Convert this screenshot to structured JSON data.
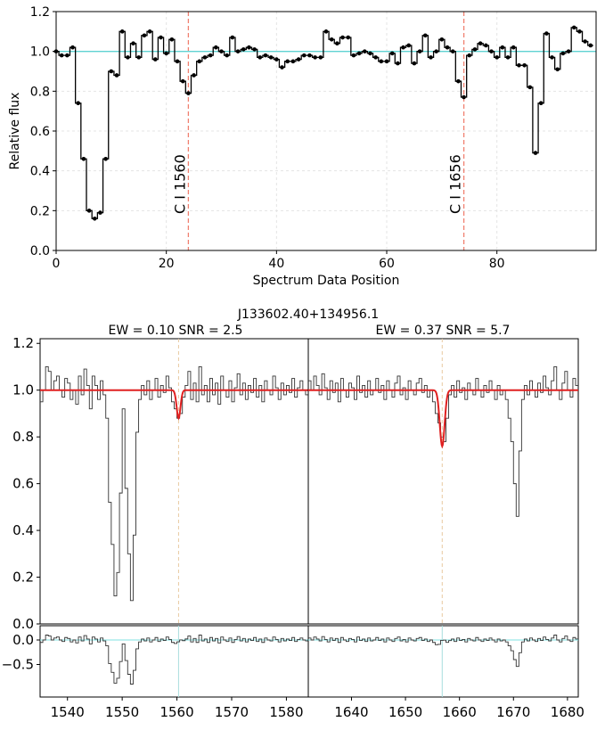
{
  "chart_data": [
    {
      "type": "line",
      "panel": "top",
      "xlabel": "Spectrum Data Position",
      "ylabel": "Relative flux",
      "xlim": [
        0,
        98
      ],
      "ylim": [
        0,
        1.2
      ],
      "xticks": [
        "0",
        "20",
        "40",
        "60",
        "80"
      ],
      "yticks": [
        "0.0",
        "0.2",
        "0.4",
        "0.6",
        "0.8",
        "1.0",
        "1.2"
      ],
      "reference_line": {
        "y": 1.0,
        "color": "#5fd3d3"
      },
      "grid": true,
      "series": [
        {
          "color": "#000000",
          "x": [
            0,
            1,
            2,
            3,
            4,
            5,
            6,
            7,
            8,
            9,
            10,
            11,
            12,
            13,
            14,
            15,
            16,
            17,
            18,
            19,
            20,
            21,
            22,
            23,
            24,
            25,
            26,
            27,
            28,
            29,
            30,
            31,
            32,
            33,
            34,
            35,
            36,
            37,
            38,
            39,
            40,
            41,
            42,
            43,
            44,
            45,
            46,
            47,
            48,
            49,
            50,
            51,
            52,
            53,
            54,
            55,
            56,
            57,
            58,
            59,
            60,
            61,
            62,
            63,
            64,
            65,
            66,
            67,
            68,
            69,
            70,
            71,
            72,
            73,
            74,
            75,
            76,
            77,
            78,
            79,
            80,
            81,
            82,
            83,
            84,
            85,
            86,
            87,
            88,
            89,
            90,
            91,
            92,
            93,
            94,
            95,
            96,
            97
          ],
          "y": [
            1.0,
            0.98,
            0.98,
            1.02,
            0.74,
            0.46,
            0.2,
            0.16,
            0.19,
            0.46,
            0.9,
            0.88,
            1.1,
            0.97,
            1.04,
            0.97,
            1.08,
            1.1,
            0.96,
            1.07,
            0.99,
            1.06,
            0.95,
            0.85,
            0.79,
            0.88,
            0.95,
            0.97,
            0.98,
            1.02,
            1.0,
            0.98,
            1.07,
            1.0,
            1.01,
            1.02,
            1.01,
            0.97,
            0.98,
            0.97,
            0.96,
            0.92,
            0.95,
            0.95,
            0.96,
            0.98,
            0.98,
            0.97,
            0.97,
            1.1,
            1.06,
            1.04,
            1.07,
            1.07,
            0.98,
            0.99,
            1.0,
            0.99,
            0.97,
            0.95,
            0.95,
            0.99,
            0.94,
            1.02,
            1.03,
            0.94,
            1.0,
            1.08,
            0.97,
            1.0,
            1.06,
            1.02,
            1.0,
            0.85,
            0.77,
            0.98,
            1.01,
            1.04,
            1.03,
            1.0,
            0.97,
            1.02,
            0.97,
            1.02,
            0.93,
            0.93,
            0.82,
            0.49,
            0.74,
            1.09,
            0.97,
            0.91,
            0.99,
            1.0,
            1.12,
            1.1,
            1.05,
            1.03
          ]
        }
      ],
      "annotations": [
        {
          "x": 24,
          "label": "C I 1560",
          "color": "#f08070"
        },
        {
          "x": 74,
          "label": "C I 1656",
          "color": "#f08070"
        }
      ]
    },
    {
      "type": "line",
      "panel": "bottom-left",
      "title": "J133602.40+134956.1",
      "subtitle": "EW = 0.10  SNR = 2.5",
      "xlim": [
        1535,
        1584
      ],
      "ylim": [
        0,
        1.22
      ],
      "yticks": [
        "0.0",
        "0.2",
        "0.4",
        "0.6",
        "0.8",
        "1.0",
        "1.2"
      ],
      "xticks": [
        "1540",
        "1550",
        "1560",
        "1570",
        "1580"
      ],
      "resid_yticks": [
        "0.0",
        "−0.5"
      ],
      "line_position": 1560.3,
      "model": {
        "color": "#e02020",
        "center": 1560.3,
        "depth": 0.12,
        "sigma": 0.35,
        "continuum": 1.0
      },
      "flux_points": [
        [
          1535,
          0.95
        ],
        [
          1535.5,
          1.0
        ],
        [
          1536,
          1.1
        ],
        [
          1536.5,
          1.08
        ],
        [
          1537,
          1.0
        ],
        [
          1537.5,
          1.04
        ],
        [
          1538,
          1.06
        ],
        [
          1538.5,
          1.0
        ],
        [
          1539,
          0.97
        ],
        [
          1539.5,
          1.05
        ],
        [
          1540,
          1.03
        ],
        [
          1540.5,
          0.96
        ],
        [
          1541,
          1.0
        ],
        [
          1541.5,
          0.94
        ],
        [
          1542,
          1.06
        ],
        [
          1542.5,
          0.98
        ],
        [
          1543,
          1.09
        ],
        [
          1543.5,
          1.02
        ],
        [
          1544,
          0.92
        ],
        [
          1544.5,
          1.06
        ],
        [
          1545,
          1.02
        ],
        [
          1545.5,
          0.96
        ],
        [
          1546,
          1.04
        ],
        [
          1546.5,
          0.98
        ],
        [
          1547,
          0.88
        ],
        [
          1547.5,
          0.52
        ],
        [
          1548,
          0.34
        ],
        [
          1548.5,
          0.12
        ],
        [
          1549,
          0.22
        ],
        [
          1549.5,
          0.56
        ],
        [
          1550,
          0.92
        ],
        [
          1550.5,
          0.58
        ],
        [
          1551,
          0.3
        ],
        [
          1551.5,
          0.1
        ],
        [
          1552,
          0.38
        ],
        [
          1552.5,
          0.82
        ],
        [
          1553,
          0.96
        ],
        [
          1553.5,
          1.02
        ],
        [
          1554,
          0.98
        ],
        [
          1554.5,
          1.04
        ],
        [
          1555,
          0.96
        ],
        [
          1555.5,
          1.0
        ],
        [
          1556,
          1.05
        ],
        [
          1556.5,
          0.97
        ],
        [
          1557,
          1.02
        ],
        [
          1557.5,
          0.99
        ],
        [
          1558,
          1.06
        ],
        [
          1558.5,
          1.01
        ],
        [
          1559,
          0.95
        ],
        [
          1559.5,
          0.92
        ],
        [
          1560,
          0.88
        ],
        [
          1560.5,
          0.9
        ],
        [
          1561,
          0.97
        ],
        [
          1561.5,
          1.02
        ],
        [
          1562,
          1.08
        ],
        [
          1562.5,
          0.96
        ],
        [
          1563,
          1.03
        ],
        [
          1563.5,
          0.95
        ],
        [
          1564,
          1.1
        ],
        [
          1564.5,
          0.98
        ],
        [
          1565,
          1.02
        ],
        [
          1565.5,
          0.95
        ],
        [
          1566,
          1.05
        ],
        [
          1566.5,
          0.98
        ],
        [
          1567,
          1.03
        ],
        [
          1567.5,
          0.94
        ],
        [
          1568,
          1.06
        ],
        [
          1568.5,
          1.0
        ],
        [
          1569,
          0.97
        ],
        [
          1569.5,
          1.04
        ],
        [
          1570,
          0.95
        ],
        [
          1570.5,
          1.01
        ],
        [
          1571,
          1.07
        ],
        [
          1571.5,
          0.98
        ],
        [
          1572,
          1.03
        ],
        [
          1572.5,
          0.96
        ],
        [
          1573,
          1.02
        ],
        [
          1573.5,
          0.99
        ],
        [
          1574,
          1.05
        ],
        [
          1574.5,
          0.97
        ],
        [
          1575,
          1.02
        ],
        [
          1575.5,
          0.95
        ],
        [
          1576,
          1.04
        ],
        [
          1576.5,
          1.0
        ],
        [
          1577,
          0.98
        ],
        [
          1577.5,
          1.06
        ],
        [
          1578,
          1.01
        ],
        [
          1578.5,
          0.96
        ],
        [
          1579,
          1.03
        ],
        [
          1579.5,
          0.98
        ],
        [
          1580,
          1.02
        ],
        [
          1580.5,
          0.99
        ],
        [
          1581,
          1.05
        ],
        [
          1581.5,
          0.97
        ],
        [
          1582,
          1.01
        ],
        [
          1582.5,
          1.04
        ],
        [
          1583,
          1.0
        ],
        [
          1583.5,
          0.98
        ]
      ]
    },
    {
      "type": "line",
      "panel": "bottom-right",
      "subtitle": "EW = 0.37  SNR = 5.7",
      "xlim": [
        1632,
        1682
      ],
      "ylim": [
        0,
        1.22
      ],
      "xticks": [
        "1640",
        "1650",
        "1660",
        "1670",
        "1680"
      ],
      "line_position": 1656.8,
      "model": {
        "color": "#e02020",
        "center": 1656.8,
        "depth": 0.24,
        "sigma": 0.45,
        "continuum": 1.0
      },
      "flux_points": [
        [
          1632,
          1.04
        ],
        [
          1632.5,
          1.0
        ],
        [
          1633,
          1.06
        ],
        [
          1633.5,
          1.02
        ],
        [
          1634,
          0.98
        ],
        [
          1634.5,
          1.07
        ],
        [
          1635,
          1.01
        ],
        [
          1635.5,
          0.96
        ],
        [
          1636,
          1.04
        ],
        [
          1636.5,
          0.99
        ],
        [
          1637,
          1.03
        ],
        [
          1637.5,
          0.95
        ],
        [
          1638,
          1.05
        ],
        [
          1638.5,
          1.0
        ],
        [
          1639,
          0.97
        ],
        [
          1639.5,
          1.03
        ],
        [
          1640,
          1.01
        ],
        [
          1640.5,
          0.96
        ],
        [
          1641,
          1.06
        ],
        [
          1641.5,
          0.99
        ],
        [
          1642,
          1.02
        ],
        [
          1642.5,
          0.97
        ],
        [
          1643,
          1.04
        ],
        [
          1643.5,
          0.98
        ],
        [
          1644,
          1.0
        ],
        [
          1644.5,
          1.05
        ],
        [
          1645,
          0.99
        ],
        [
          1645.5,
          1.02
        ],
        [
          1646,
          0.96
        ],
        [
          1646.5,
          1.04
        ],
        [
          1647,
          1.0
        ],
        [
          1647.5,
          0.97
        ],
        [
          1648,
          1.03
        ],
        [
          1648.5,
          1.06
        ],
        [
          1649,
          0.98
        ],
        [
          1649.5,
          1.01
        ],
        [
          1650,
          0.96
        ],
        [
          1650.5,
          1.04
        ],
        [
          1651,
          1.0
        ],
        [
          1651.5,
          0.98
        ],
        [
          1652,
          1.03
        ],
        [
          1652.5,
          1.05
        ],
        [
          1653,
          0.99
        ],
        [
          1653.5,
          1.02
        ],
        [
          1654,
          0.97
        ],
        [
          1654.5,
          1.0
        ],
        [
          1655,
          0.95
        ],
        [
          1655.5,
          0.9
        ],
        [
          1656,
          0.86
        ],
        [
          1656.5,
          0.8
        ],
        [
          1657,
          0.78
        ],
        [
          1657.5,
          0.88
        ],
        [
          1658,
          0.98
        ],
        [
          1658.5,
          1.02
        ],
        [
          1659,
          0.97
        ],
        [
          1659.5,
          1.04
        ],
        [
          1660,
          0.99
        ],
        [
          1660.5,
          1.01
        ],
        [
          1661,
          0.96
        ],
        [
          1661.5,
          1.03
        ],
        [
          1662,
          1.0
        ],
        [
          1662.5,
          0.98
        ],
        [
          1663,
          1.05
        ],
        [
          1663.5,
          1.0
        ],
        [
          1664,
          0.97
        ],
        [
          1664.5,
          1.02
        ],
        [
          1665,
          0.99
        ],
        [
          1665.5,
          1.04
        ],
        [
          1666,
          1.0
        ],
        [
          1666.5,
          0.96
        ],
        [
          1667,
          1.02
        ],
        [
          1667.5,
          0.98
        ],
        [
          1668,
          1.0
        ],
        [
          1668.5,
          0.96
        ],
        [
          1669,
          0.88
        ],
        [
          1669.5,
          0.78
        ],
        [
          1670,
          0.6
        ],
        [
          1670.5,
          0.46
        ],
        [
          1671,
          0.74
        ],
        [
          1671.5,
          0.96
        ],
        [
          1672,
          1.02
        ],
        [
          1672.5,
          0.98
        ],
        [
          1673,
          1.04
        ],
        [
          1673.5,
          1.0
        ],
        [
          1674,
          0.97
        ],
        [
          1674.5,
          1.03
        ],
        [
          1675,
          0.99
        ],
        [
          1675.5,
          1.06
        ],
        [
          1676,
          1.01
        ],
        [
          1676.5,
          0.98
        ],
        [
          1677,
          1.04
        ],
        [
          1677.5,
          1.1
        ],
        [
          1678,
          1.0
        ],
        [
          1678.5,
          0.96
        ],
        [
          1679,
          1.03
        ],
        [
          1679.5,
          1.08
        ],
        [
          1680,
          1.0
        ],
        [
          1680.5,
          0.97
        ],
        [
          1681,
          1.05
        ],
        [
          1681.5,
          1.02
        ]
      ]
    }
  ]
}
